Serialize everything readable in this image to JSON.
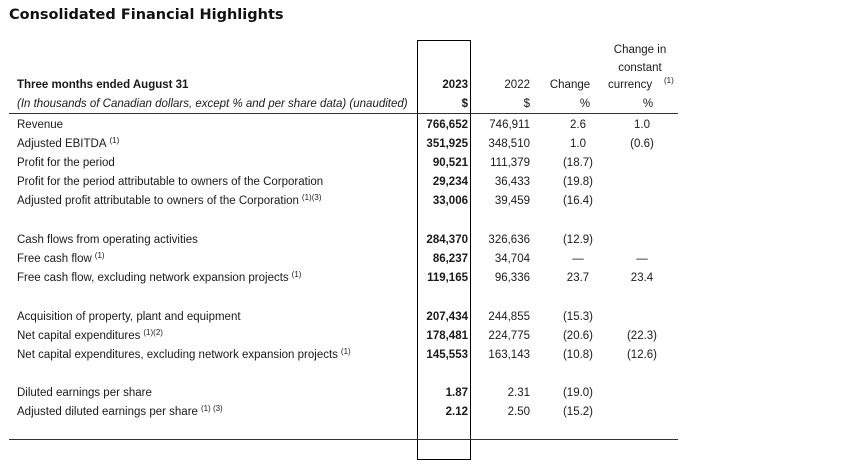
{
  "title": "Consolidated Financial Highlights",
  "header": {
    "period_label": "Three months ended August 31",
    "units_note": "(In thousands of Canadian dollars, except % and per share data) (unaudited)",
    "col_2023": "2023",
    "col_2022": "2022",
    "col_change": "Change",
    "col_ccy_line1": "Change in",
    "col_ccy_line2": "constant",
    "col_ccy_line3": "currency",
    "col_ccy_note": "(1)",
    "unit_2023": "$",
    "unit_2022": "$",
    "unit_change": "%",
    "unit_ccy": "%"
  },
  "rows": [
    {
      "label": "Revenue",
      "note": "",
      "v2023": "766,652",
      "v2022": "746,911",
      "change": "2.6",
      "ccy": "1.0"
    },
    {
      "label": "Adjusted EBITDA",
      "note": "(1)",
      "v2023": "351,925",
      "v2022": "348,510",
      "change": "1.0",
      "ccy": "(0.6)"
    },
    {
      "label": "Profit for the period",
      "note": "",
      "v2023": "90,521",
      "v2022": "111,379",
      "change": "(18.7)",
      "ccy": ""
    },
    {
      "label": "Profit for the period attributable to owners of the Corporation",
      "note": "",
      "v2023": "29,234",
      "v2022": "36,433",
      "change": "(19.8)",
      "ccy": ""
    },
    {
      "label": "Adjusted profit attributable to owners of the Corporation",
      "note": "(1)(3)",
      "v2023": "33,006",
      "v2022": "39,459",
      "change": "(16.4)",
      "ccy": ""
    },
    {
      "label": "Cash flows from operating activities",
      "note": "",
      "v2023": "284,370",
      "v2022": "326,636",
      "change": "(12.9)",
      "ccy": ""
    },
    {
      "label": "Free cash flow",
      "note": "(1)",
      "v2023": "86,237",
      "v2022": "34,704",
      "change": "—",
      "ccy": "—"
    },
    {
      "label": "Free cash flow, excluding network expansion projects",
      "note": "(1)",
      "v2023": "119,165",
      "v2022": "96,336",
      "change": "23.7",
      "ccy": "23.4"
    },
    {
      "label": "Acquisition of property, plant and equipment",
      "note": "",
      "v2023": "207,434",
      "v2022": "244,855",
      "change": "(15.3)",
      "ccy": ""
    },
    {
      "label": "Net capital expenditures",
      "note": "(1)(2)",
      "v2023": "178,481",
      "v2022": "224,775",
      "change": "(20.6)",
      "ccy": "(22.3)"
    },
    {
      "label": "Net capital expenditures, excluding network expansion projects",
      "note": "(1)",
      "v2023": "145,553",
      "v2022": "163,143",
      "change": "(10.8)",
      "ccy": "(12.6)"
    },
    {
      "label": "Diluted earnings per share",
      "note": "",
      "v2023": "1.87",
      "v2022": "2.31",
      "change": "(19.0)",
      "ccy": ""
    },
    {
      "label": "Adjusted diluted earnings per share",
      "note": "(1) (3)",
      "v2023": "2.12",
      "v2022": "2.50",
      "change": "(15.2)",
      "ccy": ""
    }
  ]
}
